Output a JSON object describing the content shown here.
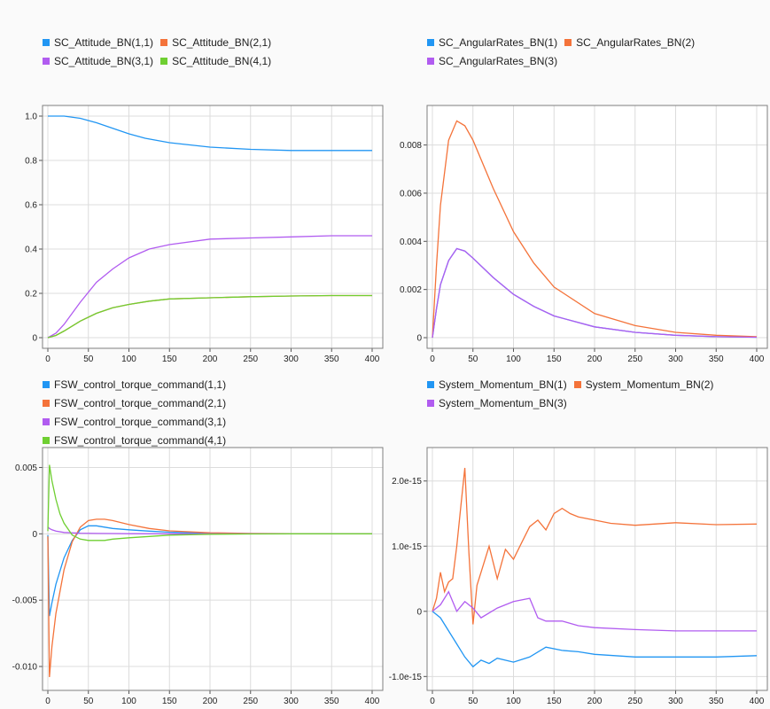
{
  "colors": {
    "blue": "#2196f3",
    "orange": "#f4733a",
    "purple": "#b15cf0",
    "green": "#6fcf32",
    "olive": "#8aa82a"
  },
  "chart_data": [
    {
      "type": "line",
      "xlim": [
        0,
        400
      ],
      "ylim": [
        0,
        1.0
      ],
      "xticks": [
        "0",
        "50",
        "100",
        "150",
        "200",
        "250",
        "300",
        "350",
        "400"
      ],
      "yticks": [
        "0",
        "0.2",
        "0.4",
        "0.6",
        "0.8",
        "1.0"
      ],
      "grid": true,
      "legend": "top",
      "series": [
        {
          "name": "SC_Attitude_BN(1,1)",
          "color": "blue",
          "x": [
            0,
            20,
            40,
            60,
            80,
            100,
            120,
            150,
            200,
            250,
            300,
            350,
            400
          ],
          "y": [
            1.0,
            1.0,
            0.99,
            0.97,
            0.945,
            0.92,
            0.9,
            0.88,
            0.86,
            0.85,
            0.845,
            0.845,
            0.845
          ]
        },
        {
          "name": "SC_Attitude_BN(2,1)",
          "color": "orange",
          "x": [
            0,
            10,
            20,
            40,
            60,
            80,
            100,
            125,
            150,
            200,
            250,
            300,
            350,
            400
          ],
          "y": [
            0,
            0.01,
            0.03,
            0.075,
            0.11,
            0.135,
            0.15,
            0.165,
            0.175,
            0.18,
            0.185,
            0.188,
            0.19,
            0.19
          ]
        },
        {
          "name": "SC_Attitude_BN(3,1)",
          "color": "purple",
          "x": [
            0,
            10,
            20,
            40,
            60,
            80,
            100,
            125,
            150,
            200,
            250,
            300,
            350,
            400
          ],
          "y": [
            0,
            0.02,
            0.06,
            0.16,
            0.25,
            0.31,
            0.36,
            0.4,
            0.42,
            0.445,
            0.45,
            0.455,
            0.46,
            0.46
          ]
        },
        {
          "name": "SC_Attitude_BN(4,1)",
          "color": "green",
          "x": [
            0,
            10,
            20,
            40,
            60,
            80,
            100,
            125,
            150,
            200,
            250,
            300,
            350,
            400
          ],
          "y": [
            0,
            0.01,
            0.03,
            0.075,
            0.11,
            0.135,
            0.15,
            0.165,
            0.175,
            0.18,
            0.185,
            0.188,
            0.19,
            0.19
          ]
        }
      ]
    },
    {
      "type": "line",
      "xlim": [
        0,
        400
      ],
      "ylim": [
        0,
        0.0092
      ],
      "xticks": [
        "0",
        "50",
        "100",
        "150",
        "200",
        "250",
        "300",
        "350",
        "400"
      ],
      "yticks": [
        "0",
        "0.002",
        "0.004",
        "0.006",
        "0.008"
      ],
      "grid": true,
      "legend": "top",
      "series": [
        {
          "name": "SC_AngularRates_BN(1)",
          "color": "blue",
          "x": [
            0,
            5,
            10,
            20,
            30,
            40,
            50,
            75,
            100,
            125,
            150,
            200,
            250,
            300,
            350,
            400
          ],
          "y": [
            0,
            0.0012,
            0.0022,
            0.0032,
            0.0037,
            0.0036,
            0.0033,
            0.0025,
            0.0018,
            0.0013,
            0.0009,
            0.00045,
            0.00022,
            0.0001,
            4e-05,
            2e-05
          ]
        },
        {
          "name": "SC_AngularRates_BN(2)",
          "color": "orange",
          "x": [
            0,
            5,
            10,
            20,
            30,
            40,
            50,
            75,
            100,
            125,
            150,
            200,
            250,
            300,
            350,
            400
          ],
          "y": [
            0,
            0.003,
            0.0055,
            0.0082,
            0.009,
            0.0088,
            0.0082,
            0.0062,
            0.0044,
            0.0031,
            0.0021,
            0.001,
            0.0005,
            0.00022,
            0.0001,
            4e-05
          ]
        },
        {
          "name": "SC_AngularRates_BN(3)",
          "color": "purple",
          "x": [
            0,
            5,
            10,
            20,
            30,
            40,
            50,
            75,
            100,
            125,
            150,
            200,
            250,
            300,
            350,
            400
          ],
          "y": [
            0,
            0.0012,
            0.0022,
            0.0032,
            0.0037,
            0.0036,
            0.0033,
            0.0025,
            0.0018,
            0.0013,
            0.0009,
            0.00045,
            0.00022,
            0.0001,
            4e-05,
            2e-05
          ]
        }
      ]
    },
    {
      "type": "line",
      "xlim": [
        0,
        400
      ],
      "ylim": [
        -0.011,
        0.0057
      ],
      "xticks": [
        "0",
        "50",
        "100",
        "150",
        "200",
        "250",
        "300",
        "350",
        "400"
      ],
      "yticks": [
        "0.005",
        "0",
        "-0.005",
        "-0.010"
      ],
      "ytick_values": [
        0.005,
        0,
        -0.005,
        -0.01
      ],
      "grid": true,
      "legend": "top",
      "series": [
        {
          "name": "FSW_control_torque_command(1,1)",
          "color": "blue",
          "x": [
            0,
            2,
            5,
            10,
            20,
            30,
            40,
            50,
            60,
            70,
            80,
            100,
            125,
            150,
            200,
            250,
            300,
            350,
            400
          ],
          "y": [
            -0.0001,
            -0.0062,
            -0.0052,
            -0.0038,
            -0.0018,
            -0.0005,
            0.0003,
            0.0006,
            0.0006,
            0.0005,
            0.0004,
            0.0003,
            0.0002,
            0.00012,
            4e-05,
            1e-05,
            0,
            0,
            0
          ]
        },
        {
          "name": "FSW_control_torque_command(2,1)",
          "color": "orange",
          "x": [
            0,
            2,
            5,
            10,
            20,
            30,
            40,
            50,
            60,
            70,
            80,
            100,
            125,
            150,
            200,
            250,
            300,
            350,
            400
          ],
          "y": [
            -0.0002,
            -0.0108,
            -0.0085,
            -0.006,
            -0.0027,
            -0.0006,
            0.0005,
            0.001,
            0.0011,
            0.0011,
            0.001,
            0.0007,
            0.0004,
            0.00022,
            8e-05,
            3e-05,
            1e-05,
            0,
            0
          ]
        },
        {
          "name": "FSW_control_torque_command(3,1)",
          "color": "purple",
          "x": [
            0,
            2,
            5,
            10,
            20,
            40,
            60,
            80,
            100,
            150,
            200,
            250,
            300,
            400
          ],
          "y": [
            0.0005,
            0.0004,
            0.0003,
            0.0002,
            0.0001,
            5e-05,
            3e-05,
            2e-05,
            1e-05,
            5e-06,
            0,
            0,
            0,
            0
          ]
        },
        {
          "name": "FSW_control_torque_command(4,1)",
          "color": "green",
          "x": [
            0,
            2,
            5,
            10,
            15,
            20,
            30,
            40,
            50,
            60,
            70,
            80,
            100,
            125,
            150,
            200,
            250,
            300,
            400
          ],
          "y": [
            0.0002,
            0.0052,
            0.004,
            0.0026,
            0.0015,
            0.0008,
            -0.0001,
            -0.0004,
            -0.0005,
            -0.0005,
            -0.0005,
            -0.0004,
            -0.0003,
            -0.0002,
            -0.0001,
            -3e-05,
            -1e-05,
            0,
            0
          ]
        }
      ]
    },
    {
      "type": "line",
      "xlim": [
        0,
        400
      ],
      "ylim": [
        -1.05e-15,
        2.35e-15
      ],
      "xticks": [
        "0",
        "50",
        "100",
        "150",
        "200",
        "250",
        "300",
        "350",
        "400"
      ],
      "yticks": [
        "2.0e-15",
        "1.0e-15",
        "0",
        "-1.0e-15"
      ],
      "ytick_values": [
        2e-15,
        1e-15,
        0,
        -1e-15
      ],
      "grid": true,
      "legend": "top",
      "series": [
        {
          "name": "System_Momentum_BN(1)",
          "color": "blue",
          "x": [
            0,
            10,
            20,
            30,
            40,
            50,
            60,
            70,
            80,
            100,
            120,
            140,
            160,
            180,
            200,
            250,
            300,
            350,
            400
          ],
          "y": [
            0,
            -1e-16,
            -3e-16,
            -5e-16,
            -7e-16,
            -8.5e-16,
            -7.5e-16,
            -8e-16,
            -7.2e-16,
            -7.8e-16,
            -7e-16,
            -5.5e-16,
            -6e-16,
            -6.2e-16,
            -6.6e-16,
            -7e-16,
            -7e-16,
            -7e-16,
            -6.8e-16
          ]
        },
        {
          "name": "System_Momentum_BN(2)",
          "color": "orange",
          "x": [
            0,
            5,
            10,
            15,
            20,
            25,
            30,
            35,
            40,
            45,
            50,
            55,
            60,
            70,
            80,
            90,
            100,
            110,
            120,
            130,
            140,
            150,
            160,
            170,
            180,
            200,
            220,
            250,
            300,
            350,
            400
          ],
          "y": [
            0,
            2e-16,
            6e-16,
            3e-16,
            4.5e-16,
            5e-16,
            1e-15,
            1.6e-15,
            2.2e-15,
            9e-16,
            -2e-16,
            4e-16,
            6e-16,
            1e-15,
            5e-16,
            9.5e-16,
            8e-16,
            1.05e-15,
            1.3e-15,
            1.4e-15,
            1.25e-15,
            1.5e-15,
            1.58e-15,
            1.5e-15,
            1.45e-15,
            1.4e-15,
            1.35e-15,
            1.32e-15,
            1.36e-15,
            1.33e-15,
            1.34e-15
          ]
        },
        {
          "name": "System_Momentum_BN(3)",
          "color": "purple",
          "x": [
            0,
            10,
            20,
            30,
            40,
            50,
            60,
            80,
            100,
            120,
            130,
            140,
            160,
            180,
            200,
            250,
            300,
            350,
            400
          ],
          "y": [
            0,
            1e-16,
            3e-16,
            0.0,
            1.5e-16,
            5e-17,
            -1e-16,
            5e-17,
            1.5e-16,
            2e-16,
            -1e-16,
            -1.5e-16,
            -1.5e-16,
            -2.2e-16,
            -2.5e-16,
            -2.8e-16,
            -3e-16,
            -3e-16,
            -3e-16
          ]
        }
      ]
    }
  ]
}
